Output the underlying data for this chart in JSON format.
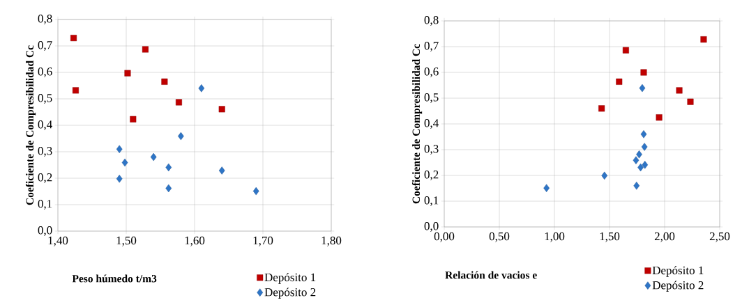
{
  "chart_data": [
    {
      "type": "scatter",
      "xlabel": "Peso húmedo t/m3",
      "ylabel": "Coeficiente de Compresibilidad Cc",
      "xlim": [
        1.4,
        1.8
      ],
      "ylim": [
        0,
        0.8
      ],
      "xticks": [
        {
          "value": 1.4,
          "label": "1,40"
        },
        {
          "value": 1.5,
          "label": "1,50"
        },
        {
          "value": 1.6,
          "label": "1,60"
        },
        {
          "value": 1.7,
          "label": "1,70"
        },
        {
          "value": 1.8,
          "label": "1,80"
        }
      ],
      "yticks": [
        {
          "value": 0,
          "label": "0,0"
        },
        {
          "value": 0.1,
          "label": "0,1"
        },
        {
          "value": 0.2,
          "label": "0,2"
        },
        {
          "value": 0.3,
          "label": "0,3"
        },
        {
          "value": 0.4,
          "label": "0,4"
        },
        {
          "value": 0.5,
          "label": "0,5"
        },
        {
          "value": 0.6,
          "label": "0,6"
        },
        {
          "value": 0.7,
          "label": "0,7"
        },
        {
          "value": 0.8,
          "label": "0,8"
        }
      ],
      "grid": true,
      "legend": "bottom right",
      "series": [
        {
          "name": "Depósito 1",
          "color": "#c00000",
          "marker": "square",
          "x": [
            1.423,
            1.426,
            1.528,
            1.502,
            1.556,
            1.577,
            1.51,
            1.64
          ],
          "values": [
            0.73,
            0.532,
            0.687,
            0.597,
            0.565,
            0.487,
            0.423,
            0.461
          ]
        },
        {
          "name": "Depósito 2",
          "color": "#2e75c6",
          "marker": "diamond",
          "x": [
            1.61,
            1.58,
            1.49,
            1.498,
            1.54,
            1.562,
            1.49,
            1.562,
            1.64,
            1.69
          ],
          "values": [
            0.54,
            0.359,
            0.31,
            0.259,
            0.28,
            0.241,
            0.198,
            0.162,
            0.229,
            0.151
          ]
        }
      ]
    },
    {
      "type": "scatter",
      "xlabel": "Relación de vacios e",
      "ylabel": "Coeficiente de Compresibilidad Cc",
      "xlim": [
        0,
        2.5
      ],
      "ylim": [
        0,
        0.8
      ],
      "xticks": [
        {
          "value": 0,
          "label": "0,00"
        },
        {
          "value": 0.5,
          "label": "0,50"
        },
        {
          "value": 1.0,
          "label": "1,00"
        },
        {
          "value": 1.5,
          "label": "1,50"
        },
        {
          "value": 2.0,
          "label": "2,00"
        },
        {
          "value": 2.5,
          "label": "2,50"
        }
      ],
      "yticks": [
        {
          "value": 0,
          "label": "0,0"
        },
        {
          "value": 0.1,
          "label": "0,1"
        },
        {
          "value": 0.2,
          "label": "0,2"
        },
        {
          "value": 0.3,
          "label": "0,3"
        },
        {
          "value": 0.4,
          "label": "0,4"
        },
        {
          "value": 0.5,
          "label": "0,5"
        },
        {
          "value": 0.6,
          "label": "0,6"
        },
        {
          "value": 0.7,
          "label": "0,7"
        },
        {
          "value": 0.8,
          "label": "0,8"
        }
      ],
      "grid": true,
      "legend": "bottom right",
      "series": [
        {
          "name": "Depósito 1",
          "color": "#c00000",
          "marker": "square",
          "x": [
            2.354,
            1.648,
            1.81,
            1.587,
            2.133,
            2.234,
            1.428,
            1.95
          ],
          "values": [
            0.728,
            0.686,
            0.6,
            0.564,
            0.53,
            0.486,
            0.46,
            0.425
          ]
        },
        {
          "name": "Depósito 2",
          "color": "#2e75c6",
          "marker": "diamond",
          "x": [
            1.797,
            1.81,
            1.817,
            1.769,
            1.74,
            1.782,
            1.821,
            1.454,
            1.745,
            0.928
          ],
          "values": [
            0.539,
            0.36,
            0.311,
            0.282,
            0.259,
            0.231,
            0.241,
            0.199,
            0.16,
            0.151
          ]
        }
      ]
    }
  ]
}
